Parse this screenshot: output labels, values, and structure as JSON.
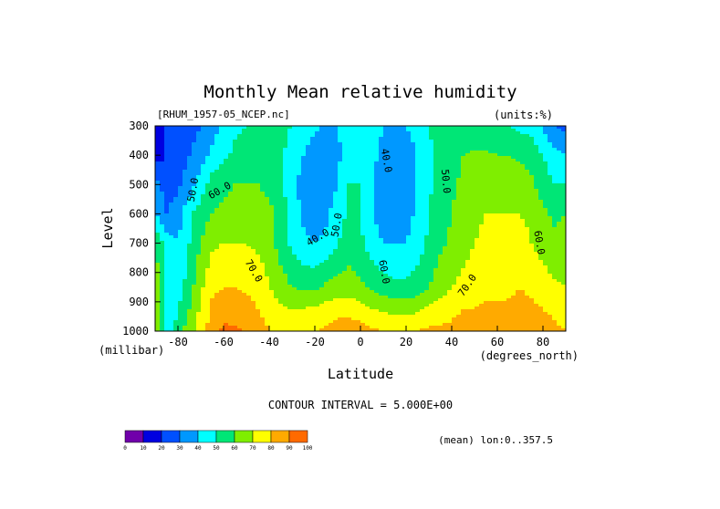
{
  "chart_data": {
    "type": "heatmap",
    "title": "Monthly Mean relative humidity",
    "source_file": "[RHUM_1957-05_NCEP.nc]",
    "units_label": "(units:%)",
    "xlabel": "Latitude",
    "ylabel": "Level",
    "x_units": "(degrees_north)",
    "y_units": "(millibar)",
    "xlim": [
      -90,
      90
    ],
    "ylim": [
      1000,
      300
    ],
    "x_ticks": [
      -80,
      -60,
      -40,
      -20,
      0,
      20,
      40,
      60,
      80
    ],
    "y_ticks": [
      300,
      400,
      500,
      600,
      700,
      800,
      900,
      1000
    ],
    "contour_interval_text": "CONTOUR INTERVAL = 5.000E+00",
    "footer_text": "(mean) lon:0..357.5",
    "levels": [
      300,
      400,
      500,
      600,
      700,
      850,
      925,
      1000
    ],
    "latitudes": [
      -90,
      -85,
      -80,
      -75,
      -70,
      -65,
      -60,
      -55,
      -50,
      -45,
      -40,
      -35,
      -30,
      -25,
      -20,
      -15,
      -10,
      -5,
      0,
      5,
      10,
      15,
      20,
      25,
      30,
      35,
      40,
      45,
      50,
      55,
      60,
      65,
      70,
      75,
      80,
      85,
      90
    ],
    "values": [
      [
        10,
        20,
        22,
        26,
        30,
        36,
        42,
        48,
        50,
        50,
        50,
        52,
        50,
        46,
        42,
        38,
        40,
        44,
        46,
        44,
        40,
        38,
        40,
        46,
        50,
        54,
        56,
        56,
        56,
        54,
        52,
        50,
        48,
        46,
        38,
        30,
        26
      ],
      [
        15,
        20,
        25,
        30,
        35,
        42,
        48,
        52,
        54,
        55,
        55,
        52,
        46,
        40,
        34,
        33,
        38,
        45,
        45,
        42,
        38,
        34,
        34,
        40,
        48,
        54,
        57,
        60,
        61,
        61,
        60,
        60,
        58,
        56,
        50,
        44,
        40
      ],
      [
        35,
        25,
        28,
        35,
        45,
        55,
        58,
        60,
        60,
        60,
        57,
        52,
        45,
        35,
        30,
        35,
        40,
        50,
        50,
        40,
        35,
        33,
        35,
        40,
        48,
        55,
        58,
        62,
        65,
        65,
        65,
        65,
        65,
        62,
        55,
        50,
        50
      ],
      [
        40,
        30,
        35,
        48,
        55,
        60,
        62,
        63,
        64,
        65,
        63,
        55,
        45,
        38,
        35,
        38,
        45,
        52,
        50,
        40,
        35,
        35,
        36,
        42,
        50,
        55,
        60,
        65,
        68,
        70,
        70,
        70,
        70,
        68,
        62,
        58,
        60
      ],
      [
        60,
        45,
        40,
        50,
        60,
        68,
        70,
        70,
        70,
        68,
        65,
        55,
        48,
        42,
        40,
        42,
        50,
        55,
        52,
        45,
        40,
        40,
        40,
        45,
        52,
        58,
        62,
        66,
        70,
        72,
        72,
        73,
        73,
        70,
        66,
        62,
        65
      ],
      [
        70,
        40,
        45,
        55,
        68,
        78,
        80,
        80,
        78,
        76,
        70,
        65,
        60,
        58,
        58,
        62,
        64,
        65,
        62,
        58,
        55,
        52,
        52,
        55,
        60,
        65,
        70,
        73,
        75,
        76,
        76,
        78,
        80,
        78,
        75,
        72,
        70
      ],
      [
        70,
        40,
        50,
        60,
        72,
        82,
        86,
        85,
        84,
        80,
        76,
        72,
        70,
        70,
        72,
        74,
        76,
        76,
        74,
        70,
        68,
        67,
        67,
        68,
        72,
        75,
        78,
        80,
        80,
        82,
        82,
        82,
        83,
        82,
        80,
        78,
        75
      ],
      [
        70,
        40,
        55,
        65,
        75,
        85,
        92,
        92,
        88,
        84,
        80,
        78,
        78,
        80,
        80,
        82,
        85,
        86,
        85,
        82,
        80,
        78,
        78,
        80,
        82,
        82,
        82,
        84,
        86,
        86,
        86,
        86,
        88,
        86,
        84,
        82,
        80
      ]
    ],
    "contour_labels": [
      {
        "text": "50.0",
        "lat": -72,
        "lev": 520,
        "rot": -80
      },
      {
        "text": "60.0",
        "lat": -61,
        "lev": 530,
        "rot": -30
      },
      {
        "text": "70.0",
        "lat": -48,
        "lev": 800,
        "rot": 60
      },
      {
        "text": "40.0",
        "lat": -18,
        "lev": 690,
        "rot": -30
      },
      {
        "text": "50.0",
        "lat": -9,
        "lev": 640,
        "rot": -80
      },
      {
        "text": "40.0",
        "lat": 10,
        "lev": 420,
        "rot": 80
      },
      {
        "text": "60.0",
        "lat": 9,
        "lev": 800,
        "rot": 80
      },
      {
        "text": "50.0",
        "lat": 36,
        "lev": 490,
        "rot": 85
      },
      {
        "text": "70.0",
        "lat": 48,
        "lev": 850,
        "rot": -55
      },
      {
        "text": "60.0",
        "lat": 77,
        "lev": 700,
        "rot": 80
      }
    ],
    "colorbar": {
      "ticks": [
        "0",
        "10",
        "20",
        "30",
        "40",
        "50",
        "60",
        "70",
        "80",
        "90",
        "100"
      ],
      "colors": [
        "#7000aa",
        "#0000e0",
        "#0050ff",
        "#0098ff",
        "#00ffff",
        "#00e676",
        "#7fee00",
        "#ffff00",
        "#ffaa00",
        "#ff6a00",
        "#ff0000"
      ]
    }
  }
}
